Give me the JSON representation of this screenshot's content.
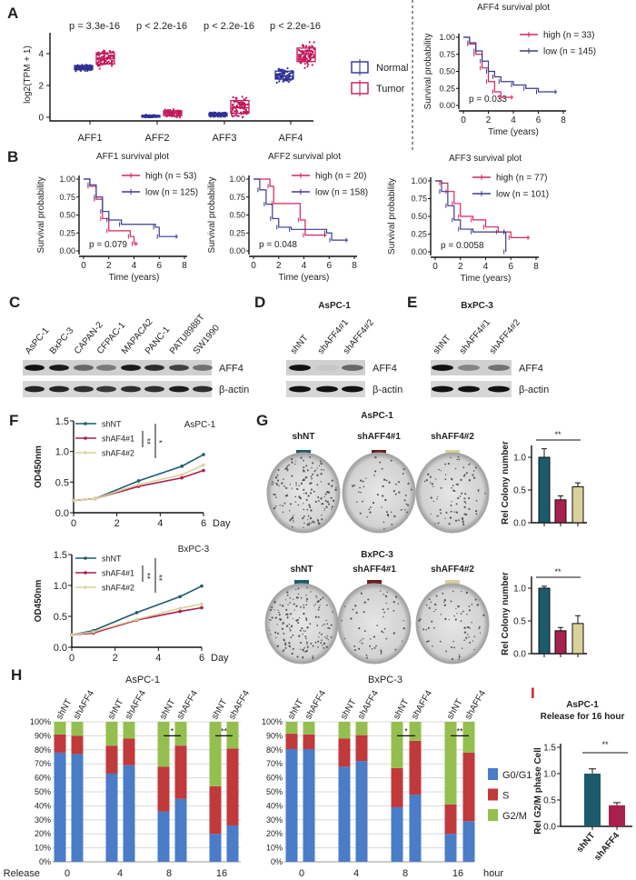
{
  "panel_labels": {
    "A": "A",
    "B": "B",
    "C": "C",
    "D": "D",
    "E": "E",
    "F": "F",
    "G": "G",
    "H": "H",
    "I": "I"
  },
  "colors": {
    "normal": "#2e3192",
    "tumor": "#c2185b",
    "high": "#d6245a",
    "low": "#3b3b8f",
    "shNT": "#1d5a6c",
    "shAFF4_1": "#a8204e",
    "shAFF4_2": "#d9d09b",
    "swatch_shAFF4_1": "#6b1c1c",
    "G0G1": "#4a7cc7",
    "S": "#c0393b",
    "G2M": "#94bf4f",
    "panel_I": "#d0202a"
  },
  "chart_data": [
    {
      "type": "box",
      "ylabel": "log2(TPM + 1)",
      "categories": [
        "AFF1",
        "AFF2",
        "AFF3",
        "AFF4"
      ],
      "yticks": [
        "0",
        "2",
        "4"
      ],
      "ylim": [
        0,
        5.4
      ],
      "pvalues": [
        "p = 3.3e-16",
        "p < 2.2e-16",
        "p < 2.2e-16",
        "p < 2.2e-16"
      ],
      "legend": [
        "Normal",
        "Tumor"
      ],
      "series": [
        {
          "name": "Normal",
          "boxes": [
            {
              "q1": 3.0,
              "median": 3.1,
              "q3": 3.25,
              "min": 2.3,
              "max": 4.6
            },
            {
              "q1": 0.02,
              "median": 0.07,
              "q3": 0.12,
              "min": 0,
              "max": 0.9
            },
            {
              "q1": 0.08,
              "median": 0.15,
              "q3": 0.25,
              "min": 0,
              "max": 1.2
            },
            {
              "q1": 2.4,
              "median": 2.6,
              "q3": 2.9,
              "min": 1.7,
              "max": 4.3
            }
          ]
        },
        {
          "name": "Tumor",
          "boxes": [
            {
              "q1": 3.35,
              "median": 3.7,
              "q3": 4.05,
              "min": 2.1,
              "max": 5.0
            },
            {
              "q1": 0.1,
              "median": 0.25,
              "q3": 0.4,
              "min": 0,
              "max": 1.9
            },
            {
              "q1": 0.25,
              "median": 0.6,
              "q3": 1.05,
              "min": 0,
              "max": 3.6
            },
            {
              "q1": 3.5,
              "median": 3.95,
              "q3": 4.35,
              "min": 2.0,
              "max": 5.3
            }
          ]
        }
      ]
    },
    {
      "type": "line",
      "title": "AFF4 survival plot",
      "xlabel": "Time (years)",
      "ylabel": "Survival probability",
      "xticks": [
        "0",
        "2",
        "4",
        "6",
        "8"
      ],
      "yticks": [
        "0.00",
        "0.25",
        "0.50",
        "0.75",
        "1.00"
      ],
      "xlim": [
        0,
        8
      ],
      "ylim": [
        0,
        1
      ],
      "pvalue": "p = 0.033",
      "series": [
        {
          "name": "high (n = 33)",
          "points": [
            [
              0,
              1
            ],
            [
              0.5,
              0.9
            ],
            [
              1,
              0.75
            ],
            [
              1.5,
              0.55
            ],
            [
              2,
              0.35
            ],
            [
              2.5,
              0.2
            ],
            [
              3,
              0.12
            ],
            [
              4,
              0.12
            ]
          ]
        },
        {
          "name": "low  (n = 145)",
          "points": [
            [
              0,
              1
            ],
            [
              0.5,
              0.92
            ],
            [
              1,
              0.8
            ],
            [
              1.5,
              0.65
            ],
            [
              2,
              0.5
            ],
            [
              2.5,
              0.42
            ],
            [
              3,
              0.35
            ],
            [
              4,
              0.3
            ],
            [
              5,
              0.25
            ],
            [
              6,
              0.2
            ],
            [
              7.5,
              0.2
            ]
          ]
        }
      ]
    },
    {
      "type": "line",
      "title": "AFF1 survival plot",
      "xlabel": "Time (years)",
      "ylabel": "Survival probability",
      "xticks": [
        "0",
        "2",
        "4",
        "6",
        "8"
      ],
      "yticks": [
        "0.00",
        "0.25",
        "0.50",
        "0.75",
        "1.00"
      ],
      "xlim": [
        0,
        8
      ],
      "ylim": [
        0,
        1
      ],
      "pvalue": "p = 0.079",
      "series": [
        {
          "name": "high (n = 53)",
          "points": [
            [
              0,
              1
            ],
            [
              0.5,
              0.9
            ],
            [
              1,
              0.72
            ],
            [
              1.5,
              0.45
            ],
            [
              2,
              0.28
            ],
            [
              3.7,
              0.2
            ],
            [
              4,
              0.1
            ],
            [
              4.3,
              0.1
            ]
          ]
        },
        {
          "name": "low  (n = 125)",
          "points": [
            [
              0,
              1
            ],
            [
              0.5,
              0.92
            ],
            [
              1,
              0.75
            ],
            [
              1.5,
              0.55
            ],
            [
              2,
              0.43
            ],
            [
              3,
              0.37
            ],
            [
              5.7,
              0.33
            ],
            [
              6,
              0.2
            ],
            [
              7.5,
              0.2
            ]
          ]
        }
      ]
    },
    {
      "type": "line",
      "title": "AFF2 survival plot",
      "xlabel": "Time (years)",
      "ylabel": "Survival probability",
      "xticks": [
        "0",
        "2",
        "4",
        "6",
        "8"
      ],
      "yticks": [
        "0.00",
        "0.25",
        "0.50",
        "0.75",
        "1.00"
      ],
      "xlim": [
        0,
        8
      ],
      "ylim": [
        0,
        1
      ],
      "pvalue": "p = 0.048",
      "series": [
        {
          "name": "high (n = 20)",
          "points": [
            [
              0,
              1
            ],
            [
              1.3,
              0.9
            ],
            [
              1.6,
              0.66
            ],
            [
              3.7,
              0.43
            ],
            [
              4.1,
              0.22
            ],
            [
              5.8,
              0.22
            ]
          ]
        },
        {
          "name": "low  (n = 158)",
          "points": [
            [
              0,
              1
            ],
            [
              0.5,
              0.85
            ],
            [
              1,
              0.65
            ],
            [
              1.5,
              0.45
            ],
            [
              2,
              0.33
            ],
            [
              3,
              0.3
            ],
            [
              5.8,
              0.25
            ],
            [
              6.2,
              0.15
            ],
            [
              7.5,
              0.15
            ]
          ]
        }
      ]
    },
    {
      "type": "line",
      "title": "AFF3 survival plot",
      "xlabel": "Time (years)",
      "ylabel": "Survival probability",
      "xticks": [
        "0",
        "2",
        "4",
        "6",
        "8"
      ],
      "yticks": [
        "0.00",
        "0.25",
        "0.50",
        "0.75",
        "1.00"
      ],
      "xlim": [
        0,
        8
      ],
      "ylim": [
        0,
        1
      ],
      "pvalue": "p = 0.0058",
      "series": [
        {
          "name": "high (n = 77)",
          "points": [
            [
              0,
              1
            ],
            [
              0.5,
              0.97
            ],
            [
              1,
              0.85
            ],
            [
              1.5,
              0.68
            ],
            [
              2,
              0.5
            ],
            [
              3,
              0.45
            ],
            [
              4,
              0.35
            ],
            [
              5,
              0.28
            ],
            [
              5.6,
              0.28
            ],
            [
              6,
              0.2
            ],
            [
              7.5,
              0.2
            ]
          ]
        },
        {
          "name": "low  (n = 101)",
          "points": [
            [
              0,
              1
            ],
            [
              0.5,
              0.85
            ],
            [
              1,
              0.65
            ],
            [
              1.5,
              0.45
            ],
            [
              2,
              0.32
            ],
            [
              3,
              0.28
            ],
            [
              5.6,
              0.28
            ],
            [
              5.6,
              0
            ]
          ]
        }
      ]
    },
    {
      "type": "line",
      "title": "AsPC-1",
      "xlabel": "Day",
      "ylabel": "OD450nm",
      "xticks": [
        "0",
        "2",
        "4",
        "6"
      ],
      "yticks": [
        "0.0",
        "0.5",
        "1.0",
        "1.5"
      ],
      "xlim": [
        0,
        6
      ],
      "ylim": [
        0,
        1.5
      ],
      "x": [
        0,
        1,
        3,
        5,
        6
      ],
      "significance": [
        "**",
        "*"
      ],
      "series": [
        {
          "name": "shNT",
          "values": [
            0.2,
            0.23,
            0.52,
            0.76,
            0.95
          ]
        },
        {
          "name": "shAF4#1",
          "values": [
            0.2,
            0.23,
            0.43,
            0.57,
            0.69
          ]
        },
        {
          "name": "shAF4#2",
          "values": [
            0.2,
            0.23,
            0.46,
            0.62,
            0.78
          ]
        }
      ]
    },
    {
      "type": "line",
      "title": "BxPC-3",
      "xlabel": "Day",
      "ylabel": "OD450nm",
      "xticks": [
        "0",
        "2",
        "4",
        "6"
      ],
      "yticks": [
        "0.0",
        "0.5",
        "1.0",
        "1.5"
      ],
      "xlim": [
        0,
        6
      ],
      "ylim": [
        0,
        1.5
      ],
      "x": [
        0,
        1,
        3,
        5,
        6
      ],
      "significance": [
        "**",
        "**"
      ],
      "series": [
        {
          "name": "shNT",
          "values": [
            0.2,
            0.27,
            0.56,
            0.82,
            0.99
          ]
        },
        {
          "name": "shAF4#1",
          "values": [
            0.2,
            0.23,
            0.44,
            0.58,
            0.64
          ]
        },
        {
          "name": "shAF4#2",
          "values": [
            0.2,
            0.25,
            0.45,
            0.63,
            0.7
          ]
        }
      ]
    },
    {
      "type": "bar",
      "title": "AsPC-1",
      "ylabel": "Rel Colony  number",
      "yticks": [
        "0.0",
        "0.5",
        "1.0"
      ],
      "ylim": [
        0,
        1.2
      ],
      "categories": [
        "shNT",
        "shAFF4#1",
        "shAFF4#2"
      ],
      "values": [
        1.0,
        0.35,
        0.55
      ],
      "errors": [
        0.13,
        0.06,
        0.06
      ],
      "significance": "**"
    },
    {
      "type": "bar",
      "title": "BxPC-3",
      "ylabel": "Rel Colony  number",
      "yticks": [
        "0.0",
        "0.5",
        "1.0"
      ],
      "ylim": [
        0,
        1.2
      ],
      "categories": [
        "shNT",
        "shAFF4#1",
        "shAFF4#2"
      ],
      "values": [
        1.0,
        0.35,
        0.46
      ],
      "errors": [
        0.03,
        0.05,
        0.12
      ],
      "significance": "**"
    },
    {
      "type": "bar",
      "stacked": true,
      "title": "AsPC-1",
      "xlabel": "Release",
      "yticks": [
        "0%",
        "10%",
        "20%",
        "30%",
        "40%",
        "50%",
        "60%",
        "70%",
        "80%",
        "90%",
        "100%"
      ],
      "ylim": [
        0,
        100
      ],
      "groups": [
        "0",
        "4",
        "8",
        "16"
      ],
      "bar_labels": [
        "shNT",
        "shAFF4"
      ],
      "significance": [
        "",
        "",
        "*",
        "**"
      ],
      "series": [
        {
          "name": "G0/G1",
          "values": [
            78,
            77,
            63,
            69,
            36,
            45,
            20,
            26
          ]
        },
        {
          "name": "S",
          "values": [
            13,
            13,
            20,
            19,
            32,
            38,
            34,
            55
          ]
        },
        {
          "name": "G2/M",
          "values": [
            9,
            10,
            17,
            12,
            32,
            17,
            46,
            19
          ]
        }
      ]
    },
    {
      "type": "bar",
      "stacked": true,
      "title": "BxPC-3",
      "xlabel": "hour",
      "yticks": [
        "0%",
        "10%",
        "20%",
        "30%",
        "40%",
        "50%",
        "60%",
        "70%",
        "80%",
        "90%",
        "100%"
      ],
      "ylim": [
        0,
        100
      ],
      "groups": [
        "0",
        "4",
        "8",
        "16"
      ],
      "bar_labels": [
        "shNT",
        "shAFF4"
      ],
      "significance": [
        "",
        "",
        "*",
        "**"
      ],
      "series": [
        {
          "name": "G0/G1",
          "values": [
            80.5,
            80.5,
            68,
            72,
            39,
            48,
            20,
            29
          ]
        },
        {
          "name": "S",
          "values": [
            11,
            10.5,
            20,
            18.5,
            28,
            38.5,
            21,
            49
          ]
        },
        {
          "name": "G2/M",
          "values": [
            8.5,
            9,
            12,
            9.5,
            33,
            13.5,
            59,
            22
          ]
        }
      ]
    },
    {
      "type": "bar",
      "title": "AsPC-1",
      "subtitle": "Release for 16 hour",
      "ylabel": "Rel G2/M phase Cell",
      "yticks": [
        "0.0",
        "0.5",
        "1.0",
        "1.5"
      ],
      "ylim": [
        0,
        1.5
      ],
      "categories": [
        "shNT",
        "shAFF4"
      ],
      "values": [
        1.0,
        0.4
      ],
      "errors": [
        0.09,
        0.05
      ],
      "significance": "**"
    }
  ],
  "blot_C": {
    "lanes": [
      "AsPC-1",
      "BxPC-3",
      "CAPAN-2",
      "CFPAC-1",
      "MAPACA2",
      "PANC-1",
      "PATU8988T",
      "SW1990"
    ],
    "aff4_intensity": [
      1,
      0.95,
      0.55,
      0.45,
      0.95,
      0.85,
      0.75,
      0.5
    ],
    "actin_intensity": [
      0.9,
      0.9,
      0.85,
      0.8,
      0.85,
      0.85,
      0.95,
      0.85
    ],
    "rows": [
      "AFF4",
      "β-actin"
    ]
  },
  "blot_D": {
    "title": "AsPC-1",
    "lanes": [
      "shNT",
      "shAFF4#1",
      "shAFF4#2"
    ],
    "aff4_intensity": [
      1,
      0.05,
      0.55
    ],
    "actin_intensity": [
      1,
      1,
      1
    ],
    "rows": [
      "AFF4",
      "β-actin"
    ]
  },
  "blot_E": {
    "title": "BxPC-3",
    "lanes": [
      "shNT",
      "shAFF4#1",
      "shAFF4#2"
    ],
    "aff4_intensity": [
      1,
      0.4,
      0.5
    ],
    "actin_intensity": [
      1,
      1,
      1
    ],
    "rows": [
      "AFF4",
      "β-actin"
    ]
  },
  "plates": {
    "labels": [
      "shNT",
      "shAFF4#1",
      "shAFF4#2"
    ]
  }
}
